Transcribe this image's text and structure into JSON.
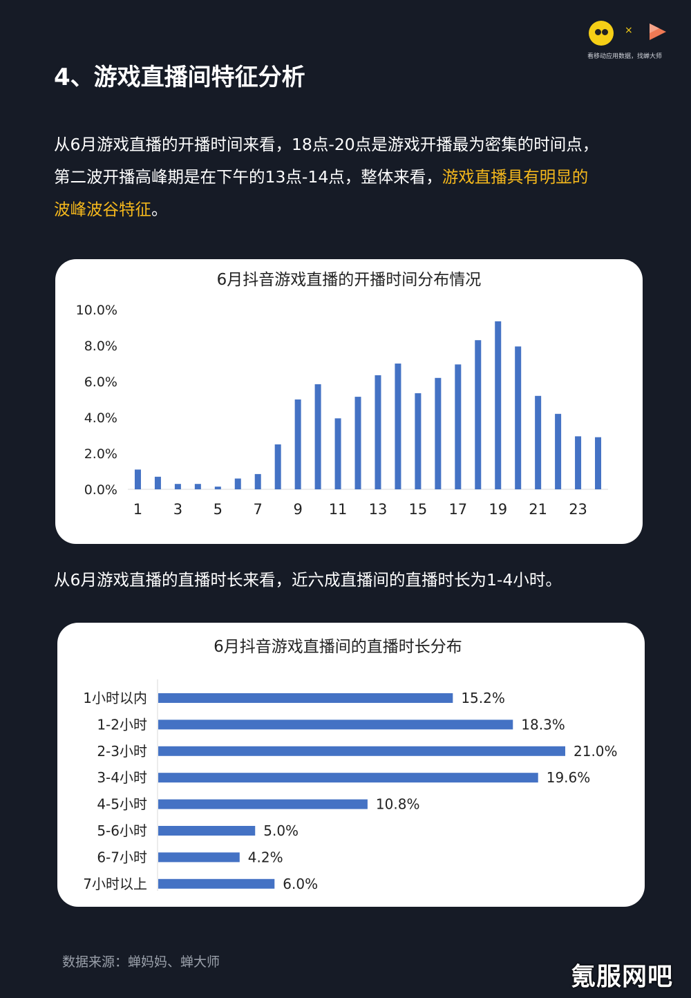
{
  "logo": {
    "caption": "看移动应用数据，找蝉大师",
    "separator": "×",
    "left_icon": "cicada-mascot-icon",
    "right_icon": "play-triangle-logo-icon"
  },
  "heading": "4、游戏直播间特征分析",
  "intro": {
    "line1": "从6月游戏直播的开播时间来看，18点-20点是游戏开播最为密集的时间点，",
    "line2_normal": "第二波开播高峰期是在下午的13点-14点，整体来看，",
    "line2_highlight": "游戏直播具有明显的",
    "line3_highlight": "波峰波谷特征",
    "line3_end": "。",
    "highlight_color": "#f5b81c"
  },
  "mid_text": "从6月游戏直播的直播时长来看，近六成直播间的直播时长为1-4小时。",
  "source": "数据来源：蝉妈妈、蝉大师",
  "watermark": "氪服网吧",
  "chart_data": [
    {
      "type": "bar",
      "title": "6月抖音游戏直播的开播时间分布情况",
      "categories": [
        1,
        2,
        3,
        4,
        5,
        6,
        7,
        8,
        9,
        10,
        11,
        12,
        13,
        14,
        15,
        16,
        17,
        18,
        19,
        20,
        21,
        22,
        23,
        24
      ],
      "x_tick_labels": [
        "1",
        "3",
        "5",
        "7",
        "9",
        "11",
        "13",
        "15",
        "17",
        "19",
        "21",
        "23"
      ],
      "values": [
        1.1,
        0.7,
        0.3,
        0.3,
        0.15,
        0.6,
        0.85,
        2.5,
        5.0,
        5.85,
        3.95,
        5.15,
        6.35,
        7.0,
        5.35,
        6.2,
        6.95,
        8.3,
        9.35,
        7.95,
        5.2,
        4.2,
        2.95,
        2.9
      ],
      "y_tick_labels": [
        "0.0%",
        "2.0%",
        "4.0%",
        "6.0%",
        "8.0%",
        "10.0%"
      ],
      "ylim": [
        0,
        10
      ],
      "bar_color": "#4472c4",
      "grid": false
    },
    {
      "type": "bar",
      "orientation": "horizontal",
      "title": "6月抖音游戏直播间的直播时长分布",
      "categories": [
        "1小时以内",
        "1-2小时",
        "2-3小时",
        "3-4小时",
        "4-5小时",
        "5-6小时",
        "6-7小时",
        "7小时以上"
      ],
      "values": [
        15.2,
        18.3,
        21.0,
        19.6,
        10.8,
        5.0,
        4.2,
        6.0
      ],
      "data_labels": [
        "15.2%",
        "18.3%",
        "21.0%",
        "19.6%",
        "10.8%",
        "5.0%",
        "4.2%",
        "6.0%"
      ],
      "bar_color": "#4472c4",
      "grid": false
    }
  ]
}
